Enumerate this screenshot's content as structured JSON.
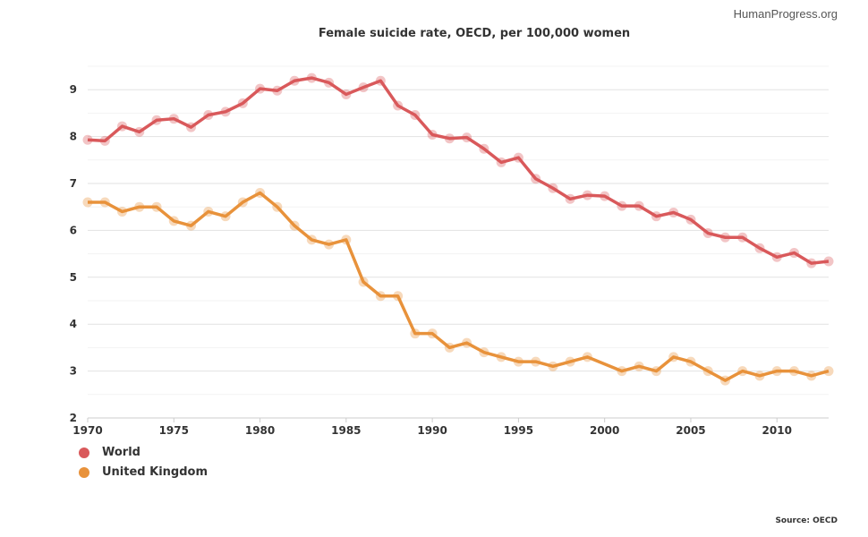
{
  "brand": "HumanProgress.org",
  "source": "Source: OECD",
  "chart_data": {
    "type": "line",
    "title": "Female suicide rate, OECD, per 100,000 women",
    "xlabel": "",
    "ylabel": "",
    "xlim": [
      1970,
      2013
    ],
    "ylim": [
      2,
      9.6
    ],
    "x_ticks": [
      "1970",
      "1975",
      "1980",
      "1985",
      "1990",
      "1995",
      "2000",
      "2005",
      "2010"
    ],
    "y_ticks": [
      "2",
      "3",
      "4",
      "5",
      "6",
      "7",
      "8",
      "9"
    ],
    "grid": true,
    "legend_position": "bottom-left",
    "series": [
      {
        "name": "World",
        "color": "#d9595b",
        "x": [
          1970,
          1971,
          1972,
          1973,
          1974,
          1975,
          1976,
          1977,
          1978,
          1979,
          1980,
          1981,
          1982,
          1983,
          1984,
          1985,
          1986,
          1987,
          1988,
          1989,
          1990,
          1991,
          1992,
          1993,
          1994,
          1995,
          1996,
          1997,
          1998,
          1999,
          2000,
          2001,
          2002,
          2003,
          2004,
          2005,
          2006,
          2007,
          2008,
          2009,
          2010,
          2011,
          2012,
          2013
        ],
        "values": [
          7.93,
          7.91,
          8.22,
          8.1,
          8.35,
          8.38,
          8.2,
          8.46,
          8.53,
          8.71,
          9.02,
          8.98,
          9.19,
          9.25,
          9.15,
          8.9,
          9.05,
          9.19,
          8.66,
          8.46,
          8.04,
          7.96,
          7.98,
          7.74,
          7.45,
          7.55,
          7.1,
          6.9,
          6.67,
          6.75,
          6.73,
          6.52,
          6.52,
          6.3,
          6.38,
          6.23,
          5.94,
          5.85,
          5.85,
          5.62,
          5.43,
          5.52,
          5.3,
          5.34
        ]
      },
      {
        "name": "United Kingdom",
        "color": "#e8923b",
        "x": [
          1970,
          1971,
          1972,
          1973,
          1974,
          1975,
          1976,
          1977,
          1978,
          1979,
          1980,
          1981,
          1982,
          1983,
          1984,
          1985,
          1986,
          1987,
          1988,
          1989,
          1990,
          1991,
          1992,
          1993,
          1994,
          1995,
          1996,
          1997,
          1998,
          1999,
          2001,
          2002,
          2003,
          2004,
          2005,
          2006,
          2007,
          2008,
          2009,
          2010,
          2011,
          2012,
          2013
        ],
        "values": [
          6.6,
          6.6,
          6.4,
          6.5,
          6.5,
          6.2,
          6.1,
          6.4,
          6.3,
          6.6,
          6.8,
          6.5,
          6.1,
          5.8,
          5.7,
          5.8,
          4.9,
          4.6,
          4.6,
          3.8,
          3.8,
          3.5,
          3.6,
          3.4,
          3.3,
          3.2,
          3.2,
          3.1,
          3.2,
          3.3,
          3.0,
          3.1,
          3.0,
          3.3,
          3.2,
          3.0,
          2.8,
          3.0,
          2.9,
          3.0,
          3.0,
          2.9,
          3.0
        ]
      }
    ]
  }
}
